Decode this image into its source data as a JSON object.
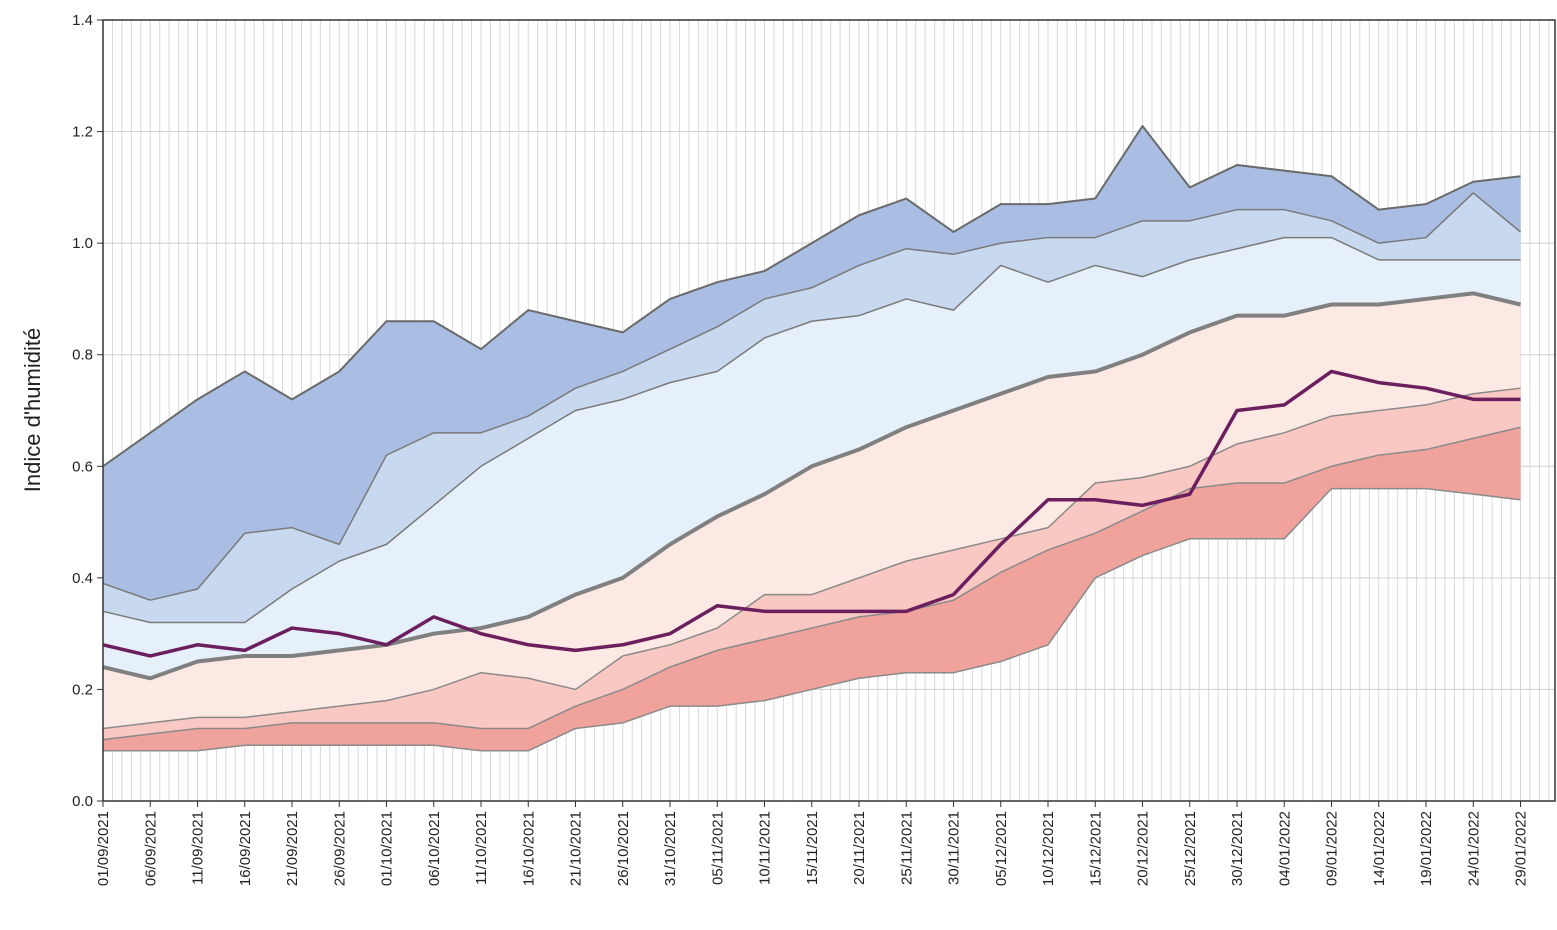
{
  "chart_data": {
    "type": "band",
    "y_label": "Indice d'humidité",
    "categories": [
      "01/09/2021",
      "06/09/2021",
      "11/09/2021",
      "16/09/2021",
      "21/09/2021",
      "26/09/2021",
      "01/10/2021",
      "06/10/2021",
      "11/10/2021",
      "16/10/2021",
      "21/10/2021",
      "26/10/2021",
      "31/10/2021",
      "05/11/2021",
      "10/11/2021",
      "15/11/2021",
      "20/11/2021",
      "25/11/2021",
      "30/11/2021",
      "05/12/2021",
      "10/12/2021",
      "15/12/2021",
      "20/12/2021",
      "25/12/2021",
      "30/12/2021",
      "04/01/2022",
      "09/01/2022",
      "14/01/2022",
      "19/01/2022",
      "24/01/2022",
      "29/01/2022"
    ],
    "band_colors": [
      "#a9bee2",
      "#c8d8ef",
      "#e6f0fa",
      "#fde9e3",
      "#f9c8c2",
      "#f0a29d"
    ],
    "series": [
      {
        "color": "#6a6a6a",
        "width": 2,
        "values": [
          0.6,
          0.66,
          0.72,
          0.77,
          0.72,
          0.77,
          0.86,
          0.86,
          0.81,
          0.88,
          0.86,
          0.84,
          0.9,
          0.93,
          0.95,
          1.0,
          1.05,
          1.08,
          1.02,
          1.07,
          1.07,
          1.08,
          1.21,
          1.1,
          1.14,
          1.13,
          1.12,
          1.06,
          1.07,
          1.11,
          1.12
        ]
      },
      {
        "color": "#7a7a7a",
        "width": 1.5,
        "values": [
          0.39,
          0.36,
          0.38,
          0.48,
          0.49,
          0.46,
          0.62,
          0.66,
          0.66,
          0.69,
          0.74,
          0.77,
          0.81,
          0.85,
          0.9,
          0.92,
          0.96,
          0.99,
          0.98,
          1.0,
          1.01,
          1.01,
          1.04,
          1.04,
          1.06,
          1.06,
          1.04,
          1.0,
          1.01,
          1.09,
          1.02
        ]
      },
      {
        "color": "#7a7a7a",
        "width": 1.5,
        "values": [
          0.34,
          0.32,
          0.32,
          0.32,
          0.38,
          0.43,
          0.46,
          0.53,
          0.6,
          0.65,
          0.7,
          0.72,
          0.75,
          0.77,
          0.83,
          0.86,
          0.87,
          0.9,
          0.88,
          0.96,
          0.93,
          0.96,
          0.94,
          0.97,
          0.99,
          1.01,
          1.01,
          0.97,
          0.97,
          0.97,
          0.97
        ]
      },
      {
        "color": "#808080",
        "width": 4,
        "values": [
          0.24,
          0.22,
          0.25,
          0.26,
          0.26,
          0.27,
          0.28,
          0.3,
          0.31,
          0.33,
          0.37,
          0.4,
          0.46,
          0.51,
          0.55,
          0.6,
          0.63,
          0.67,
          0.7,
          0.73,
          0.76,
          0.77,
          0.8,
          0.84,
          0.87,
          0.87,
          0.89,
          0.89,
          0.9,
          0.91,
          0.89
        ]
      },
      {
        "color": "#8a8a8a",
        "width": 1.5,
        "values": [
          0.13,
          0.14,
          0.15,
          0.15,
          0.16,
          0.17,
          0.18,
          0.2,
          0.23,
          0.22,
          0.2,
          0.26,
          0.28,
          0.31,
          0.37,
          0.37,
          0.4,
          0.43,
          0.45,
          0.47,
          0.49,
          0.57,
          0.58,
          0.6,
          0.64,
          0.66,
          0.69,
          0.7,
          0.71,
          0.73,
          0.74
        ]
      },
      {
        "color": "#8a8a8a",
        "width": 1.5,
        "values": [
          0.11,
          0.12,
          0.13,
          0.13,
          0.14,
          0.14,
          0.14,
          0.14,
          0.13,
          0.13,
          0.17,
          0.2,
          0.24,
          0.27,
          0.29,
          0.31,
          0.33,
          0.34,
          0.36,
          0.41,
          0.45,
          0.48,
          0.52,
          0.56,
          0.57,
          0.57,
          0.6,
          0.62,
          0.63,
          0.65,
          0.67
        ]
      },
      {
        "color": "#8a8a8a",
        "width": 1.5,
        "values": [
          0.09,
          0.09,
          0.09,
          0.1,
          0.1,
          0.1,
          0.1,
          0.1,
          0.09,
          0.09,
          0.13,
          0.14,
          0.17,
          0.17,
          0.18,
          0.2,
          0.22,
          0.23,
          0.23,
          0.25,
          0.28,
          0.4,
          0.44,
          0.47,
          0.47,
          0.47,
          0.56,
          0.56,
          0.56,
          0.55,
          0.54
        ]
      },
      {
        "color": "#6b1f5e",
        "width": 3.5,
        "values": [
          0.28,
          0.26,
          0.28,
          0.27,
          0.31,
          0.3,
          0.28,
          0.33,
          0.3,
          0.28,
          0.27,
          0.28,
          0.3,
          0.35,
          0.34,
          0.34,
          0.34,
          0.34,
          0.37,
          0.46,
          0.54,
          0.54,
          0.53,
          0.55,
          0.7,
          0.71,
          0.77,
          0.75,
          0.74,
          0.72,
          0.72
        ]
      }
    ],
    "ylim": [
      0,
      1.4
    ],
    "yticks": [
      {
        "value": 0,
        "label": "0.0"
      },
      0.2,
      0.4,
      0.6,
      0.8,
      {
        "value": 1,
        "label": "1.0"
      },
      1.2,
      1.4
    ],
    "grid": true
  }
}
